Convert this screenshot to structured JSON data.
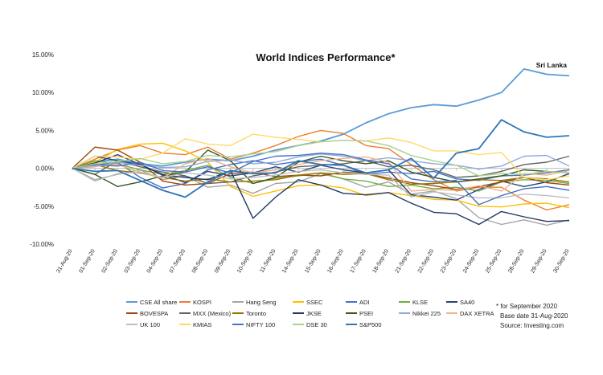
{
  "chart_data": {
    "type": "line",
    "title": "World Indices Performance*",
    "annotation": "Sri Lanka",
    "xlabel": "",
    "ylabel": "",
    "ylim": [
      -10,
      15
    ],
    "y_ticks": [
      15,
      10,
      5,
      0,
      -5,
      -10
    ],
    "y_tick_labels": [
      "15.00%",
      "10.00%",
      "5.00%",
      "0.00%",
      "-5.00%",
      "-10.00%"
    ],
    "grid": false,
    "legend_position": "bottom",
    "notes": [
      "* for September 2020",
      "Base date 31-Aug-2020",
      "Source: Investing.com"
    ],
    "categories": [
      "31-Aug-20",
      "01-Sep-20",
      "02-Sep-20",
      "03-Sep-20",
      "04-Sep-20",
      "07-Sep-20",
      "08-Sep-20",
      "09-Sep-20",
      "10-Sep-20",
      "11-Sep-20",
      "14-Sep-20",
      "15-Sep-20",
      "16-Sep-20",
      "17-Sep-20",
      "18-Sep-20",
      "21-Sep-20",
      "22-Sep-20",
      "23-Sep-20",
      "24-Sep-20",
      "25-Sep-20",
      "28-Sep-20",
      "29-Sep-20",
      "30-Sep-20"
    ],
    "series": [
      {
        "name": "CSE All share",
        "color": "#5b9bd5",
        "values": [
          0,
          0.8,
          1.2,
          0.6,
          0.3,
          0.8,
          1.2,
          1.0,
          1.6,
          2.4,
          3.0,
          3.6,
          4.5,
          6.0,
          7.2,
          8.0,
          8.4,
          8.2,
          9.0,
          10.0,
          13.1,
          12.4,
          12.2
        ]
      },
      {
        "name": "KOSPI",
        "color": "#ed7d31",
        "values": [
          0,
          1.2,
          2.4,
          3.0,
          2.0,
          1.8,
          2.8,
          1.2,
          2.0,
          3.0,
          4.2,
          5.0,
          4.6,
          3.0,
          2.6,
          0.5,
          -1.5,
          -3.0,
          -2.5,
          -2.5,
          -4.2,
          -5.5,
          -4.8
        ]
      },
      {
        "name": "Hang Seng",
        "color": "#a5a5a5",
        "values": [
          0,
          -1.5,
          -0.8,
          -0.2,
          -1.5,
          -1.0,
          -2.5,
          -2.2,
          -3.3,
          -2.0,
          -1.8,
          -0.7,
          -1.4,
          -2.5,
          -1.8,
          -3.4,
          -3.0,
          -4.0,
          -6.5,
          -7.4,
          -6.8,
          -7.5,
          -6.8
        ]
      },
      {
        "name": "SSEC",
        "color": "#ffc000",
        "values": [
          0,
          0.8,
          2.5,
          3.2,
          3.3,
          2.3,
          0.8,
          -2.4,
          -3.7,
          -3.0,
          -2.3,
          -2.2,
          -2.6,
          -3.6,
          -3.2,
          -3.6,
          -4.1,
          -4.2,
          -5.0,
          -5.1,
          -4.7,
          -4.6,
          -5.2
        ]
      },
      {
        "name": "ADI",
        "color": "#4472c4",
        "values": [
          0,
          0.4,
          0.8,
          -1.2,
          -2.6,
          -2.0,
          -0.2,
          0.5,
          1.0,
          0.5,
          0.9,
          1.2,
          0.4,
          -0.8,
          -0.5,
          -0.7,
          -0.4,
          -1.4,
          -1.6,
          -1.0,
          -0.9,
          -0.6,
          -0.2
        ]
      },
      {
        "name": "KLSE",
        "color": "#70ad47",
        "values": [
          0,
          1.0,
          0.6,
          -0.2,
          -0.8,
          -0.3,
          0.4,
          -1.2,
          -2.0,
          -1.3,
          -1.0,
          -0.6,
          -1.4,
          -1.7,
          -2.4,
          -2.2,
          -2.7,
          -2.5,
          -3.0,
          -1.8,
          -1.5,
          -1.6,
          -2.0
        ]
      },
      {
        "name": "SA40",
        "color": "#264478",
        "values": [
          0,
          1.6,
          1.0,
          0.5,
          -0.8,
          -1.9,
          -0.4,
          -1.0,
          -0.6,
          0.2,
          -0.5,
          0.4,
          -0.2,
          -0.6,
          -0.2,
          -3.5,
          -3.8,
          -4.2,
          -2.8,
          -1.7,
          -2.4,
          -1.8,
          -0.7
        ]
      },
      {
        "name": "BOVESPA",
        "color": "#9e480e",
        "values": [
          0,
          2.8,
          2.4,
          0.8,
          -1.7,
          -2.2,
          -2.0,
          -0.7,
          -0.5,
          -1.1,
          -0.9,
          -1.0,
          -0.5,
          -0.7,
          -1.3,
          -1.9,
          -2.3,
          -2.8,
          -2.4,
          -1.8,
          -1.2,
          -1.9,
          -2.2
        ]
      },
      {
        "name": "MXX (Mexico)",
        "color": "#636363",
        "values": [
          0,
          -0.8,
          1.0,
          0.2,
          -0.5,
          -1.0,
          -2.0,
          -1.8,
          -1.0,
          -0.5,
          0.2,
          0.4,
          0.6,
          1.0,
          0.2,
          0.4,
          -0.2,
          -1.2,
          -1.0,
          -0.4,
          0.5,
          0.8,
          1.6
        ]
      },
      {
        "name": "Toronto",
        "color": "#997300",
        "values": [
          0,
          0.5,
          -0.3,
          -0.6,
          -1.2,
          -1.7,
          -1.4,
          -1.8,
          -1.7,
          -1.5,
          -0.9,
          -0.6,
          -0.8,
          -0.7,
          -1.5,
          -2.1,
          -2.0,
          -1.8,
          -1.5,
          -1.6,
          -1.2,
          -1.4,
          -1.8
        ]
      },
      {
        "name": "JKSE",
        "color": "#1f3864",
        "values": [
          0,
          0.7,
          1.8,
          0.5,
          -0.9,
          -1.2,
          -1.5,
          -0.3,
          -6.6,
          -3.8,
          -1.5,
          -2.2,
          -3.3,
          -3.5,
          -3.2,
          -4.6,
          -5.8,
          -6.0,
          -7.4,
          -5.7,
          -6.4,
          -7.0,
          -6.9
        ]
      },
      {
        "name": "PSEI",
        "color": "#375623",
        "values": [
          0,
          -0.8,
          -2.4,
          -1.8,
          -1.0,
          -0.5,
          2.4,
          1.0,
          -2.0,
          -1.2,
          0.8,
          1.6,
          1.0,
          0.6,
          1.0,
          -0.5,
          -1.2,
          -1.8,
          -1.4,
          -1.0,
          -0.2,
          -0.4,
          -0.6
        ]
      },
      {
        "name": "Nikkei 225",
        "color": "#8faadc",
        "values": [
          0,
          0.2,
          0.8,
          0.4,
          0.1,
          0.2,
          0.9,
          1.1,
          0.6,
          0.8,
          1.5,
          1.9,
          1.6,
          1.0,
          1.4,
          1.0,
          0.6,
          0.4,
          -0.1,
          0.3,
          1.6,
          1.7,
          0.3
        ]
      },
      {
        "name": "DAX XETRA",
        "color": "#f4b183",
        "values": [
          0,
          0.3,
          0.5,
          -0.5,
          -1.3,
          0.6,
          1.3,
          0.2,
          -0.6,
          -0.2,
          0.5,
          1.0,
          1.3,
          1.5,
          0.8,
          -3.0,
          -2.8,
          -2.9,
          -2.3,
          -3.0,
          -0.7,
          -0.9,
          -0.3
        ]
      },
      {
        "name": "UK 100",
        "color": "#bfbfbf",
        "values": [
          0,
          -1.7,
          -0.7,
          -0.5,
          -1.2,
          -0.6,
          -0.9,
          -1.4,
          -1.2,
          -0.9,
          -0.4,
          -0.2,
          -0.6,
          -0.8,
          -0.9,
          -3.8,
          -3.1,
          -3.5,
          -3.9,
          -3.9,
          -3.4,
          -3.6,
          -3.9
        ]
      },
      {
        "name": "KMIAS",
        "color": "#ffd966",
        "values": [
          0,
          1.6,
          1.5,
          1.2,
          2.0,
          3.9,
          3.2,
          3.0,
          4.5,
          4.1,
          3.8,
          3.5,
          3.7,
          3.6,
          4.0,
          3.4,
          2.3,
          2.3,
          1.8,
          2.1,
          -1.2,
          -1.5,
          -1.0
        ]
      },
      {
        "name": "NIFTY 100",
        "color": "#4472c4",
        "values": [
          0,
          0.5,
          0.3,
          0.8,
          -0.3,
          -0.5,
          0.2,
          -0.6,
          0.9,
          1.6,
          1.7,
          2.0,
          1.8,
          1.1,
          0.6,
          -1.4,
          -1.8,
          -1.6,
          -4.8,
          -3.6,
          -2.7,
          -2.4,
          -2.9
        ]
      },
      {
        "name": "DSE 30",
        "color": "#a9d18e",
        "values": [
          0,
          0.6,
          0.9,
          1.3,
          0.6,
          0.9,
          1.7,
          1.5,
          1.9,
          2.2,
          3.0,
          3.5,
          3.7,
          3.6,
          3.0,
          1.7,
          1.0,
          0.4,
          -1.0,
          -0.7,
          -0.8,
          -0.4,
          -0.6
        ]
      },
      {
        "name": "S&P500",
        "color": "#2e75b6",
        "values": [
          0,
          -0.4,
          -0.3,
          -1.6,
          -2.9,
          -3.8,
          -1.8,
          -0.3,
          -0.7,
          -0.6,
          1.0,
          0.5,
          0.4,
          -0.6,
          -0.2,
          1.3,
          -1.3,
          2.0,
          2.6,
          6.4,
          4.8,
          4.1,
          4.3
        ]
      }
    ]
  }
}
